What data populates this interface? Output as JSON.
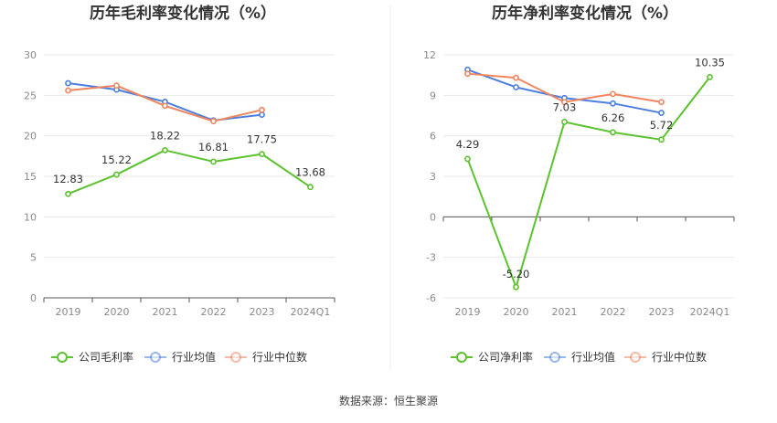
{
  "source": "数据来源：恒生聚源",
  "chart_data": [
    {
      "type": "line",
      "title": "历年毛利率变化情况（%）",
      "categories": [
        "2019",
        "2020",
        "2021",
        "2022",
        "2023",
        "2024Q1"
      ],
      "ylim": [
        0,
        30
      ],
      "yticks": [
        0,
        5,
        10,
        15,
        20,
        25,
        30
      ],
      "grid": true,
      "legend_position": "bottom",
      "series": [
        {
          "name": "公司毛利率",
          "color": "#5cc22f",
          "values": [
            12.83,
            15.22,
            18.22,
            16.81,
            17.75,
            13.68
          ],
          "labels": [
            "12.83",
            "15.22",
            "18.22",
            "16.81",
            "17.75",
            "13.68"
          ]
        },
        {
          "name": "行业均值",
          "color": "#4a7fe0",
          "values": [
            26.5,
            25.7,
            24.2,
            21.9,
            22.6,
            null
          ]
        },
        {
          "name": "行业中位数",
          "color": "#f0855f",
          "values": [
            25.6,
            26.2,
            23.7,
            21.8,
            23.2,
            null
          ]
        }
      ]
    },
    {
      "type": "line",
      "title": "历年净利率变化情况（%）",
      "categories": [
        "2019",
        "2020",
        "2021",
        "2022",
        "2023",
        "2024Q1"
      ],
      "ylim": [
        -6,
        12
      ],
      "yticks": [
        -6,
        -3,
        0,
        3,
        6,
        9,
        12
      ],
      "grid": true,
      "legend_position": "bottom",
      "series": [
        {
          "name": "公司净利率",
          "color": "#5cc22f",
          "values": [
            4.29,
            -5.2,
            7.03,
            6.26,
            5.72,
            10.35
          ],
          "labels": [
            "4.29",
            "-5.20",
            "7.03",
            "6.26",
            "5.72",
            "10.35"
          ]
        },
        {
          "name": "行业均值",
          "color": "#4a7fe0",
          "values": [
            10.9,
            9.6,
            8.8,
            8.4,
            7.7,
            null
          ]
        },
        {
          "name": "行业中位数",
          "color": "#f0855f",
          "values": [
            10.6,
            10.3,
            8.5,
            9.1,
            8.5,
            null
          ]
        }
      ]
    }
  ]
}
